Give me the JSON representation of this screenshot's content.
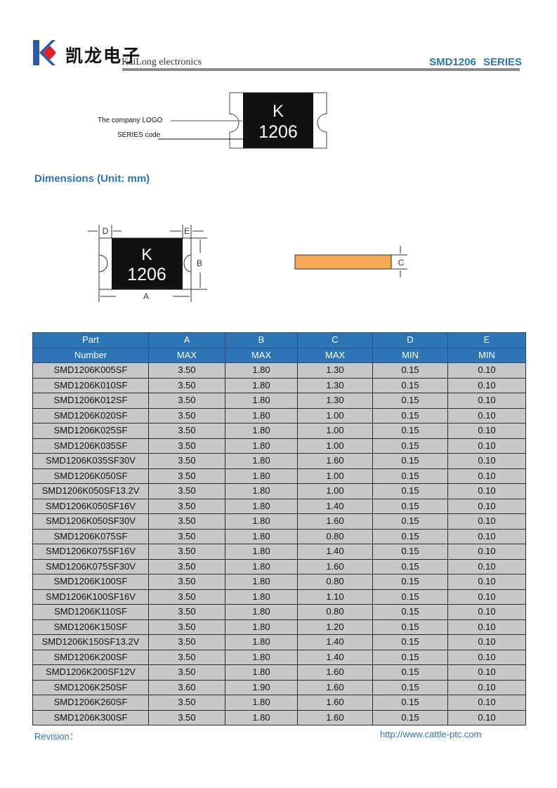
{
  "header": {
    "logo_letter": "K",
    "brand_cn": "凯龙电子",
    "brand_en": "KaiLong electronics",
    "series": "SMD1206 SERIES",
    "colors": {
      "logo_blue": "#2d5aa8",
      "logo_red": "#e02020",
      "accent": "#2e75b6"
    }
  },
  "marking": {
    "chip_line1": "K",
    "chip_line2": "1206",
    "logo_label": "The company LOGO",
    "series_label": "SERIES code"
  },
  "dimensions": {
    "title": "Dimensions (Unit: mm)",
    "label_a": "A",
    "label_b": "B",
    "label_c": "C",
    "label_d": "D",
    "label_e": "E",
    "chip_line1": "K",
    "chip_line2": "1206",
    "side_color": "#f4a957"
  },
  "table": {
    "header_row1": [
      "Part",
      "A",
      "B",
      "C",
      "D",
      "E"
    ],
    "header_row2": [
      "Number",
      "MAX",
      "MAX",
      "MAX",
      "MIN",
      "MIN"
    ],
    "rows": [
      [
        "SMD1206K005SF",
        "3.50",
        "1.80",
        "1.30",
        "0.15",
        "0.10"
      ],
      [
        "SMD1206K010SF",
        "3.50",
        "1.80",
        "1.30",
        "0.15",
        "0.10"
      ],
      [
        "SMD1206K012SF",
        "3.50",
        "1.80",
        "1.30",
        "0.15",
        "0.10"
      ],
      [
        "SMD1206K020SF",
        "3.50",
        "1.80",
        "1.00",
        "0.15",
        "0.10"
      ],
      [
        "SMD1206K025SF",
        "3.50",
        "1.80",
        "1.00",
        "0.15",
        "0.10"
      ],
      [
        "SMD1206K035SF",
        "3.50",
        "1.80",
        "1.00",
        "0.15",
        "0.10"
      ],
      [
        "SMD1206K035SF30V",
        "3.50",
        "1.80",
        "1.60",
        "0.15",
        "0.10"
      ],
      [
        "SMD1206K050SF",
        "3.50",
        "1.80",
        "1.00",
        "0.15",
        "0.10"
      ],
      [
        "SMD1206K050SF13.2V",
        "3.50",
        "1.80",
        "1.00",
        "0.15",
        "0.10"
      ],
      [
        "SMD1206K050SF16V",
        "3.50",
        "1.80",
        "1.40",
        "0.15",
        "0.10"
      ],
      [
        "SMD1206K050SF30V",
        "3.50",
        "1.80",
        "1.60",
        "0.15",
        "0.10"
      ],
      [
        "SMD1206K075SF",
        "3.50",
        "1.80",
        "0.80",
        "0.15",
        "0.10"
      ],
      [
        "SMD1206K075SF16V",
        "3.50",
        "1.80",
        "1.40",
        "0.15",
        "0.10"
      ],
      [
        "SMD1206K075SF30V",
        "3.50",
        "1.80",
        "1.60",
        "0.15",
        "0.10"
      ],
      [
        "SMD1206K100SF",
        "3.50",
        "1.80",
        "0.80",
        "0.15",
        "0.10"
      ],
      [
        "SMD1206K100SF16V",
        "3.50",
        "1.80",
        "1.10",
        "0.15",
        "0.10"
      ],
      [
        "SMD1206K110SF",
        "3.50",
        "1.80",
        "0.80",
        "0.15",
        "0.10"
      ],
      [
        "SMD1206K150SF",
        "3.50",
        "1.80",
        "1.20",
        "0.15",
        "0.10"
      ],
      [
        "SMD1206K150SF13.2V",
        "3.50",
        "1.80",
        "1.40",
        "0.15",
        "0.10"
      ],
      [
        "SMD1206K200SF",
        "3.50",
        "1.80",
        "1.40",
        "0.15",
        "0.10"
      ],
      [
        "SMD1206K200SF12V",
        "3.50",
        "1.80",
        "1.60",
        "0.15",
        "0.10"
      ],
      [
        "SMD1206K250SF",
        "3.60",
        "1.90",
        "1.60",
        "0.15",
        "0.10"
      ],
      [
        "SMD1206K260SF",
        "3.50",
        "1.80",
        "1.60",
        "0.15",
        "0.10"
      ],
      [
        "SMD1206K300SF",
        "3.50",
        "1.80",
        "1.60",
        "0.15",
        "0.10"
      ]
    ]
  },
  "footer": {
    "revision": "Revision：",
    "url": "http://www.cattle-ptc.com"
  }
}
